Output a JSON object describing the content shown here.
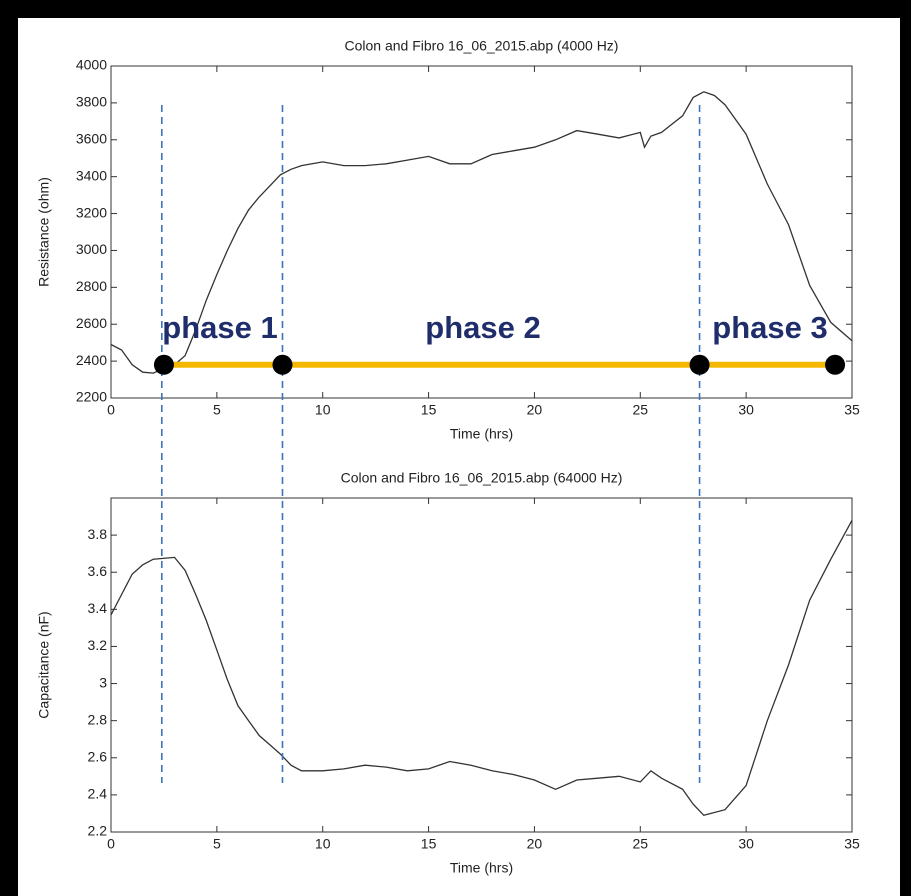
{
  "chart_data": [
    {
      "type": "line",
      "title": "Colon and Fibro 16_06_2015.abp (4000 Hz)",
      "xlabel": "Time (hrs)",
      "ylabel": "Resistance (ohm)",
      "x": [
        0,
        0.5,
        1,
        1.5,
        2,
        2.5,
        3,
        3.5,
        4,
        4.5,
        5,
        5.5,
        6,
        6.5,
        7,
        7.5,
        8,
        8.5,
        9,
        10,
        11,
        12,
        13,
        14,
        15,
        16,
        17,
        18,
        19,
        20,
        21,
        22,
        23,
        24,
        25,
        25.2,
        25.5,
        26,
        27,
        27.5,
        28,
        28.5,
        29,
        30,
        31,
        32,
        33,
        34,
        35
      ],
      "values": [
        2490,
        2460,
        2380,
        2340,
        2335,
        2360,
        2380,
        2430,
        2570,
        2730,
        2870,
        3000,
        3120,
        3220,
        3290,
        3350,
        3410,
        3440,
        3460,
        3480,
        3460,
        3460,
        3470,
        3490,
        3510,
        3470,
        3470,
        3520,
        3540,
        3560,
        3600,
        3650,
        3630,
        3610,
        3640,
        3560,
        3620,
        3640,
        3730,
        3830,
        3860,
        3840,
        3790,
        3630,
        3360,
        3140,
        2810,
        2610,
        2510
      ],
      "color": "#333333",
      "xlim": [
        0,
        35
      ],
      "ylim": [
        2200,
        4000
      ],
      "xticks": [
        0,
        5,
        10,
        15,
        20,
        25,
        30,
        35
      ],
      "yticks": [
        2200,
        2400,
        2600,
        2800,
        3000,
        3200,
        3400,
        3600,
        3800,
        4000
      ],
      "phase_lines": [
        2.4,
        8.1,
        27.8
      ],
      "phase_markers": {
        "x": [
          2.5,
          8.1,
          27.8,
          34.2
        ],
        "y": 2380
      },
      "annotations": [
        "phase 1",
        "phase 2",
        "phase 3"
      ]
    },
    {
      "type": "line",
      "title": "Colon and Fibro 16_06_2015.abp (64000 Hz)",
      "xlabel": "Time (hrs)",
      "ylabel": "Capacitance (nF)",
      "x": [
        0,
        0.5,
        1,
        1.5,
        2,
        3,
        3.5,
        4,
        4.5,
        5,
        5.5,
        6,
        6.5,
        7,
        7.5,
        8,
        8.5,
        9,
        10,
        11,
        12,
        13,
        14,
        15,
        16,
        17,
        18,
        19,
        20,
        21,
        22,
        23,
        24,
        25,
        25.5,
        26,
        27,
        27.5,
        28,
        29,
        30,
        31,
        32,
        33,
        34,
        35
      ],
      "values": [
        3.37,
        3.48,
        3.59,
        3.64,
        3.67,
        3.68,
        3.61,
        3.48,
        3.34,
        3.18,
        3.02,
        2.88,
        2.8,
        2.72,
        2.67,
        2.62,
        2.56,
        2.53,
        2.53,
        2.54,
        2.56,
        2.55,
        2.53,
        2.54,
        2.58,
        2.56,
        2.53,
        2.51,
        2.48,
        2.43,
        2.48,
        2.49,
        2.5,
        2.47,
        2.53,
        2.49,
        2.43,
        2.35,
        2.29,
        2.32,
        2.45,
        2.8,
        3.1,
        3.45,
        3.67,
        3.88
      ],
      "color": "#333333",
      "xlim": [
        0,
        35
      ],
      "ylim": [
        2.2,
        4.0
      ],
      "xticks": [
        0,
        5,
        10,
        15,
        20,
        25,
        30,
        35
      ],
      "yticks": [
        2.2,
        2.4,
        2.6,
        2.8,
        3,
        3.2,
        3.4,
        3.6,
        3.8
      ]
    }
  ]
}
